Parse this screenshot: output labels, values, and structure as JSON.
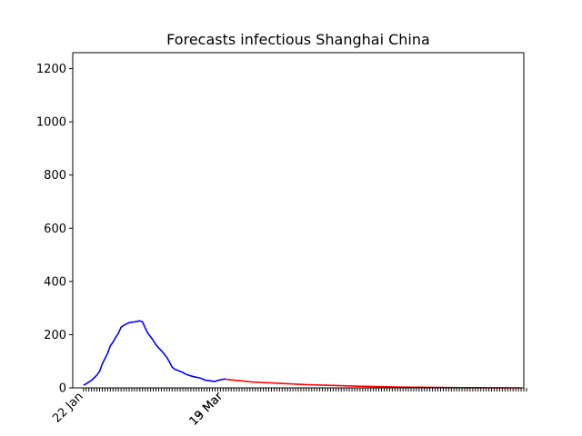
{
  "chart_data": {
    "type": "line",
    "title": "Forecasts infectious Shanghai China",
    "xlabel": "",
    "ylabel": "",
    "ylim": [
      0,
      1260
    ],
    "yticks": [
      0,
      200,
      400,
      600,
      800,
      1000,
      1200
    ],
    "x_range_index": [
      -4,
      164
    ],
    "x_labels": [
      {
        "index": 0,
        "label": "22 Jan"
      },
      {
        "index": 52,
        "label": "13 Mar"
      },
      {
        "index": 52,
        "label": "19 Mar"
      }
    ],
    "minor_ticks": {
      "start": 0,
      "end": 165,
      "step": 1
    },
    "grid": false,
    "colors": {
      "observed": "#0000ff",
      "forecast": "#ff0000"
    },
    "series": [
      {
        "key": "observed",
        "start_index": 0,
        "values": [
          10,
          15,
          22,
          28,
          38,
          48,
          62,
          90,
          110,
          130,
          158,
          172,
          190,
          205,
          228,
          235,
          240,
          245,
          247,
          248,
          250,
          252,
          248,
          225,
          205,
          192,
          178,
          162,
          150,
          140,
          128,
          115,
          98,
          78,
          70,
          66,
          62,
          58,
          52,
          48,
          45,
          42,
          40,
          38,
          35,
          30,
          28,
          27,
          25,
          24,
          28,
          30,
          32,
          34
        ]
      },
      {
        "key": "forecast",
        "start_index": 53,
        "values": [
          32,
          31,
          30,
          29,
          28,
          27,
          26,
          25,
          24,
          23,
          22,
          21.5,
          21,
          20.5,
          20,
          19.5,
          19,
          18.5,
          18,
          17.5,
          17,
          16.5,
          16,
          15.5,
          15,
          14.5,
          14,
          13.5,
          13,
          12.5,
          12,
          11.7,
          11.4,
          11.1,
          10.8,
          10.5,
          10.2,
          9.9,
          9.6,
          9.3,
          9,
          8.7,
          8.4,
          8.1,
          7.8,
          7.5,
          7.2,
          6.9,
          6.6,
          6.3,
          6,
          5.8,
          5.6,
          5.4,
          5.2,
          5,
          4.8,
          4.6,
          4.4,
          4.2,
          4,
          3.8,
          3.6,
          3.4,
          3.2,
          3,
          2.9,
          2.8,
          2.7,
          2.6,
          2.5,
          2.4,
          2.3,
          2.2,
          2.1,
          2,
          1.9,
          1.8,
          1.7,
          1.6,
          1.5,
          1.4,
          1.3,
          1.2,
          1.1,
          1,
          0.95,
          0.9,
          0.85,
          0.8,
          0.75,
          0.7,
          0.65,
          0.6,
          0.55,
          0.5,
          0.45,
          0.4,
          0.35,
          0.3,
          0.25,
          0.2,
          0.15,
          0.1,
          0.08,
          0.06,
          0.04,
          0.03,
          0.02,
          0.01,
          0.01
        ]
      }
    ]
  }
}
